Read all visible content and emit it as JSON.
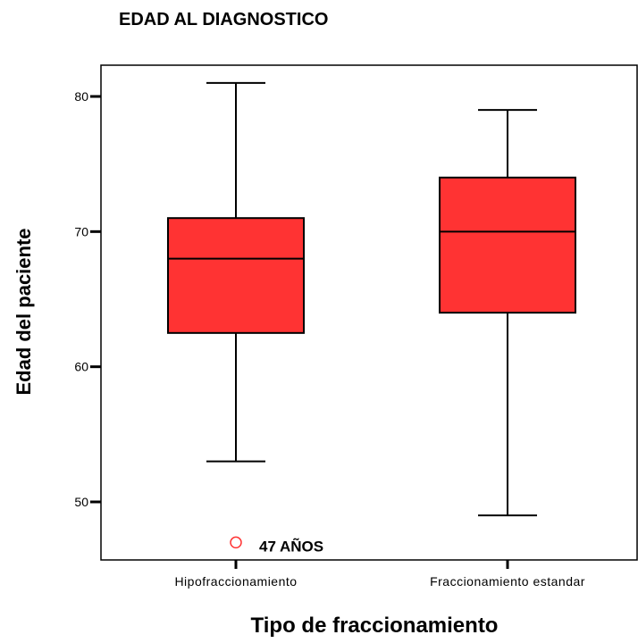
{
  "chart_data": {
    "type": "boxplot",
    "title": "EDAD AL DIAGNOSTICO",
    "xlabel": "Tipo de fraccionamiento",
    "ylabel": "Edad del paciente",
    "ylim": [
      46,
      88
    ],
    "yticks": [
      50,
      60,
      70,
      80
    ],
    "grid": false,
    "box_color": "#ff3333",
    "outlier_color": "#ff3333",
    "categories": [
      "Hipofraccionamiento",
      "Fraccionamiento estandar"
    ],
    "boxes": [
      {
        "category": "Hipofraccionamiento",
        "whisker_low": 53,
        "q1": 62.5,
        "median": 68,
        "q3": 71,
        "whisker_high": 81
      },
      {
        "category": "Fraccionamiento estandar",
        "whisker_low": 49,
        "q1": 64,
        "median": 70,
        "q3": 74,
        "whisker_high": 79
      }
    ],
    "outliers": [
      {
        "category": "Hipofraccionamiento",
        "value": 47,
        "label": "47 AÑOS"
      }
    ]
  }
}
